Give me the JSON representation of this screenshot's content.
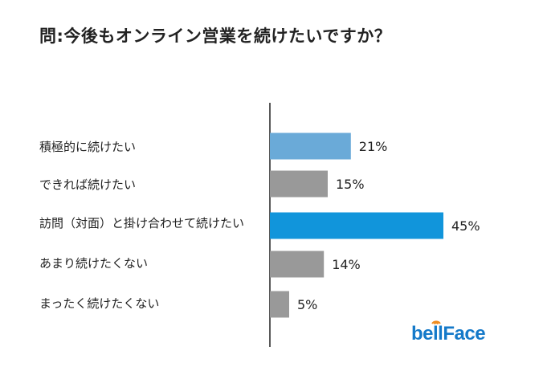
{
  "title": "問:今後もオンライン営業を続けたいですか？",
  "chart_data": {
    "type": "bar",
    "orientation": "horizontal",
    "title": "問:今後もオンライン営業を続けたいですか？",
    "categories": [
      "積極的に続けたい",
      "できれば続けたい",
      "訪問（対面）と掛け合わせて続けたい",
      "あまり続けたくない",
      "まったく続けたくない"
    ],
    "values": [
      21,
      15,
      45,
      14,
      5
    ],
    "value_labels": [
      "21%",
      "15%",
      "45%",
      "14%",
      "5%"
    ],
    "unit": "%",
    "colors": [
      "#6aaad8",
      "#999999",
      "#1195db",
      "#999999",
      "#999999"
    ],
    "xlim": [
      0,
      45
    ],
    "grid": false,
    "legend": "none"
  },
  "logo": {
    "text": "bellFace",
    "color": "#1479c9"
  }
}
